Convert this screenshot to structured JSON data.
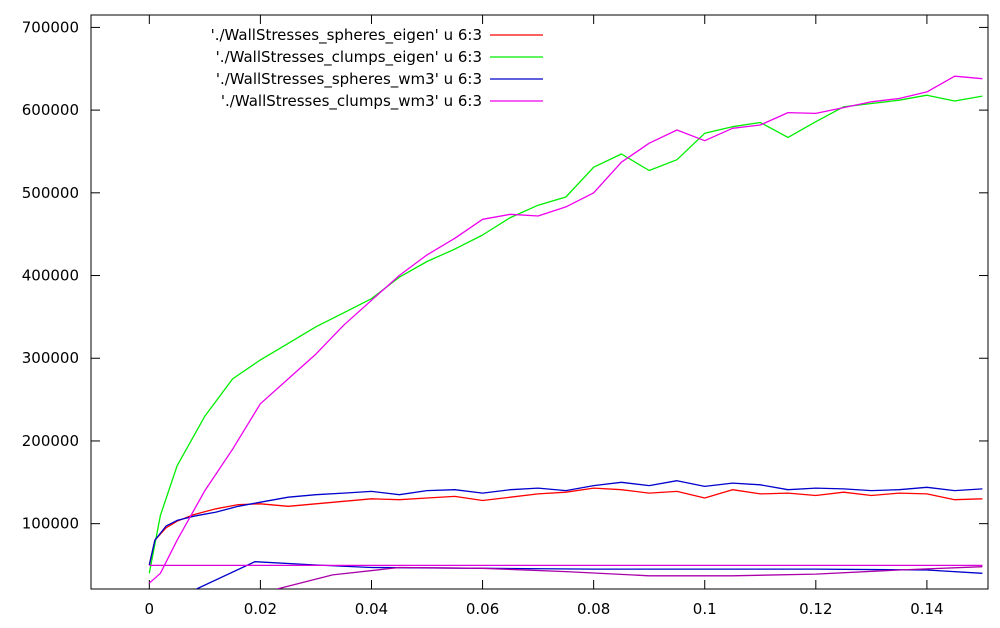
{
  "chart_data": {
    "type": "line",
    "title": "",
    "xlabel": "",
    "ylabel": "",
    "xlim": [
      -0.0105,
      0.151
    ],
    "ylim": [
      21000,
      715000
    ],
    "xticks": [
      0,
      0.02,
      0.04,
      0.06,
      0.08,
      0.1,
      0.12,
      0.14
    ],
    "xtick_labels": [
      "0",
      "0.02",
      "0.04",
      "0.06",
      "0.08",
      "0.1",
      "0.12",
      "0.14"
    ],
    "yticks": [
      100000,
      200000,
      300000,
      400000,
      500000,
      600000,
      700000
    ],
    "ytick_labels": [
      "100000",
      "200000",
      "300000",
      "400000",
      "500000",
      "600000",
      "700000"
    ],
    "grid": false,
    "legend_position": "top-left",
    "series": [
      {
        "name": "'./WallStresses_spheres_eigen' u 6:3",
        "color": "#ff0000",
        "points": [
          [
            0,
            50000
          ],
          [
            0.001,
            80000
          ],
          [
            0.003,
            95000
          ],
          [
            0.005,
            103000
          ],
          [
            0.008,
            111000
          ],
          [
            0.012,
            118000
          ],
          [
            0.016,
            123000
          ],
          [
            0.02,
            124000
          ],
          [
            0.025,
            121000
          ],
          [
            0.03,
            124000
          ],
          [
            0.035,
            127000
          ],
          [
            0.04,
            130000
          ],
          [
            0.045,
            129000
          ],
          [
            0.05,
            131000
          ],
          [
            0.055,
            133000
          ],
          [
            0.06,
            128000
          ],
          [
            0.065,
            132000
          ],
          [
            0.07,
            136000
          ],
          [
            0.075,
            138000
          ],
          [
            0.08,
            143000
          ],
          [
            0.085,
            141000
          ],
          [
            0.09,
            137000
          ],
          [
            0.095,
            139000
          ],
          [
            0.1,
            131000
          ],
          [
            0.105,
            141000
          ],
          [
            0.11,
            136000
          ],
          [
            0.115,
            137000
          ],
          [
            0.12,
            134000
          ],
          [
            0.125,
            138000
          ],
          [
            0.13,
            134000
          ],
          [
            0.135,
            137000
          ],
          [
            0.14,
            136000
          ],
          [
            0.145,
            129000
          ],
          [
            0.15,
            130000
          ]
        ]
      },
      {
        "name": "'./WallStresses_clumps_eigen' u 6:3",
        "color": "#00ee00",
        "points": [
          [
            0,
            40000
          ],
          [
            0.002,
            110000
          ],
          [
            0.005,
            170000
          ],
          [
            0.01,
            230000
          ],
          [
            0.015,
            275000
          ],
          [
            0.02,
            298000
          ],
          [
            0.025,
            318000
          ],
          [
            0.03,
            338000
          ],
          [
            0.035,
            355000
          ],
          [
            0.04,
            372000
          ],
          [
            0.045,
            398000
          ],
          [
            0.05,
            417000
          ],
          [
            0.055,
            432000
          ],
          [
            0.06,
            449000
          ],
          [
            0.065,
            470000
          ],
          [
            0.07,
            485000
          ],
          [
            0.075,
            495000
          ],
          [
            0.08,
            531000
          ],
          [
            0.085,
            547000
          ],
          [
            0.09,
            527000
          ],
          [
            0.095,
            540000
          ],
          [
            0.1,
            572000
          ],
          [
            0.105,
            580000
          ],
          [
            0.11,
            585000
          ],
          [
            0.115,
            567000
          ],
          [
            0.12,
            586000
          ],
          [
            0.125,
            604000
          ],
          [
            0.13,
            608000
          ],
          [
            0.135,
            612000
          ],
          [
            0.14,
            618000
          ],
          [
            0.145,
            611000
          ],
          [
            0.15,
            617000
          ]
        ]
      },
      {
        "name": "'./WallStresses_spheres_wm3' u 6:3",
        "color": "#0000cc",
        "points": [
          [
            0,
            50000
          ],
          [
            0.001,
            80000
          ],
          [
            0.003,
            97000
          ],
          [
            0.005,
            104000
          ],
          [
            0.008,
            109000
          ],
          [
            0.012,
            114000
          ],
          [
            0.016,
            121000
          ],
          [
            0.02,
            126000
          ],
          [
            0.025,
            132000
          ],
          [
            0.03,
            135000
          ],
          [
            0.035,
            137000
          ],
          [
            0.04,
            139000
          ],
          [
            0.045,
            135000
          ],
          [
            0.05,
            140000
          ],
          [
            0.055,
            141000
          ],
          [
            0.06,
            137000
          ],
          [
            0.065,
            141000
          ],
          [
            0.07,
            143000
          ],
          [
            0.075,
            140000
          ],
          [
            0.08,
            146000
          ],
          [
            0.085,
            150000
          ],
          [
            0.09,
            146000
          ],
          [
            0.095,
            152000
          ],
          [
            0.1,
            145000
          ],
          [
            0.105,
            149000
          ],
          [
            0.11,
            147000
          ],
          [
            0.115,
            141000
          ],
          [
            0.12,
            143000
          ],
          [
            0.125,
            142000
          ],
          [
            0.13,
            140000
          ],
          [
            0.135,
            141000
          ],
          [
            0.14,
            144000
          ],
          [
            0.145,
            140000
          ],
          [
            0.15,
            142000
          ]
        ]
      },
      {
        "name": "'./WallStresses_clumps_wm3' u 6:3",
        "color": "#ee00ee",
        "points": [
          [
            0,
            28000
          ],
          [
            0.002,
            40000
          ],
          [
            0.005,
            80000
          ],
          [
            0.01,
            140000
          ],
          [
            0.015,
            190000
          ],
          [
            0.02,
            245000
          ],
          [
            0.025,
            275000
          ],
          [
            0.03,
            305000
          ],
          [
            0.035,
            340000
          ],
          [
            0.04,
            370000
          ],
          [
            0.045,
            400000
          ],
          [
            0.05,
            425000
          ],
          [
            0.055,
            445000
          ],
          [
            0.06,
            468000
          ],
          [
            0.065,
            474000
          ],
          [
            0.07,
            472000
          ],
          [
            0.075,
            483000
          ],
          [
            0.08,
            500000
          ],
          [
            0.085,
            537000
          ],
          [
            0.09,
            560000
          ],
          [
            0.095,
            576000
          ],
          [
            0.1,
            563000
          ],
          [
            0.105,
            578000
          ],
          [
            0.11,
            582000
          ],
          [
            0.115,
            597000
          ],
          [
            0.12,
            596000
          ],
          [
            0.125,
            603000
          ],
          [
            0.13,
            610000
          ],
          [
            0.135,
            614000
          ],
          [
            0.14,
            622000
          ],
          [
            0.145,
            641000
          ],
          [
            0.15,
            638000
          ]
        ]
      },
      {
        "name": "",
        "color": "#0000cc",
        "points": [
          [
            0.0085,
            21000
          ],
          [
            0.019,
            54000
          ],
          [
            0.03,
            50000
          ],
          [
            0.04,
            47000
          ],
          [
            0.06,
            46000
          ],
          [
            0.08,
            45000
          ],
          [
            0.1,
            45000
          ],
          [
            0.12,
            45000
          ],
          [
            0.14,
            44000
          ],
          [
            0.15,
            40000
          ]
        ]
      },
      {
        "name": "",
        "color": "#aa00aa",
        "points": [
          [
            0.023,
            21000
          ],
          [
            0.033,
            38000
          ],
          [
            0.045,
            47000
          ],
          [
            0.06,
            46000
          ],
          [
            0.075,
            42000
          ],
          [
            0.09,
            37000
          ],
          [
            0.105,
            37000
          ],
          [
            0.12,
            39000
          ],
          [
            0.135,
            44000
          ],
          [
            0.15,
            48000
          ]
        ]
      },
      {
        "name": "",
        "color": "#dd00dd",
        "points": [
          [
            0,
            49500
          ],
          [
            0.15,
            49500
          ]
        ]
      }
    ]
  }
}
